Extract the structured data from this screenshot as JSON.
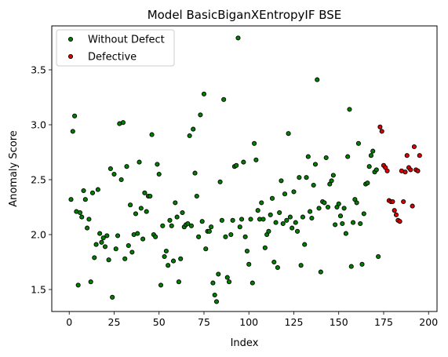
{
  "chart_data": {
    "type": "scatter",
    "title": "Model BasicBiganXEntropyIF BSE",
    "xlabel": "Index",
    "ylabel": "Anomaly Score",
    "xlim": [
      -9.7,
      204.7
    ],
    "ylim": [
      1.3,
      3.9
    ],
    "xticks": [
      0,
      25,
      50,
      75,
      100,
      125,
      150,
      175,
      200
    ],
    "yticks": [
      1.5,
      2.0,
      2.5,
      3.0,
      3.5
    ],
    "ytick_labels": [
      "1.5",
      "2.0",
      "2.5",
      "3.0",
      "3.5"
    ],
    "grid": false,
    "legend_position": "upper left",
    "series": [
      {
        "name": "Without Defect",
        "color": "#008000",
        "edgecolor": "#000000",
        "points": [
          [
            1,
            2.32
          ],
          [
            2,
            2.94
          ],
          [
            3,
            3.08
          ],
          [
            4,
            2.21
          ],
          [
            5,
            1.54
          ],
          [
            6,
            2.2
          ],
          [
            7,
            2.16
          ],
          [
            8,
            2.4
          ],
          [
            9,
            2.32
          ],
          [
            10,
            2.06
          ],
          [
            11,
            2.14
          ],
          [
            12,
            1.57
          ],
          [
            13,
            2.38
          ],
          [
            14,
            1.79
          ],
          [
            15,
            1.91
          ],
          [
            16,
            2.41
          ],
          [
            17,
            2.01
          ],
          [
            18,
            1.93
          ],
          [
            19,
            1.97
          ],
          [
            20,
            1.89
          ],
          [
            21,
            1.99
          ],
          [
            22,
            1.77
          ],
          [
            23,
            2.6
          ],
          [
            24,
            1.43
          ],
          [
            25,
            2.55
          ],
          [
            26,
            1.87
          ],
          [
            27,
            1.99
          ],
          [
            28,
            3.01
          ],
          [
            29,
            2.5
          ],
          [
            30,
            3.02
          ],
          [
            31,
            1.78
          ],
          [
            32,
            2.62
          ],
          [
            33,
            1.9
          ],
          [
            34,
            2.27
          ],
          [
            35,
            1.84
          ],
          [
            36,
            2.0
          ],
          [
            37,
            2.19
          ],
          [
            38,
            2.01
          ],
          [
            39,
            2.66
          ],
          [
            40,
            2.24
          ],
          [
            41,
            1.96
          ],
          [
            42,
            2.38
          ],
          [
            43,
            2.21
          ],
          [
            44,
            2.35
          ],
          [
            45,
            2.35
          ],
          [
            46,
            2.91
          ],
          [
            47,
            2.0
          ],
          [
            48,
            1.98
          ],
          [
            49,
            2.64
          ],
          [
            50,
            2.55
          ],
          [
            51,
            1.54
          ],
          [
            52,
            2.08
          ],
          [
            53,
            1.8
          ],
          [
            54,
            1.85
          ],
          [
            55,
            1.72
          ],
          [
            56,
            2.13
          ],
          [
            57,
            2.08
          ],
          [
            58,
            1.76
          ],
          [
            59,
            2.29
          ],
          [
            60,
            2.16
          ],
          [
            61,
            1.57
          ],
          [
            62,
            1.78
          ],
          [
            63,
            2.2
          ],
          [
            64,
            2.07
          ],
          [
            65,
            2.09
          ],
          [
            66,
            2.1
          ],
          [
            67,
            2.9
          ],
          [
            68,
            2.08
          ],
          [
            69,
            2.96
          ],
          [
            70,
            2.56
          ],
          [
            71,
            2.35
          ],
          [
            72,
            1.98
          ],
          [
            73,
            3.09
          ],
          [
            74,
            2.12
          ],
          [
            75,
            3.28
          ],
          [
            76,
            1.87
          ],
          [
            77,
            2.03
          ],
          [
            78,
            2.03
          ],
          [
            79,
            2.07
          ],
          [
            80,
            1.56
          ],
          [
            81,
            1.45
          ],
          [
            82,
            1.39
          ],
          [
            83,
            1.64
          ],
          [
            84,
            2.48
          ],
          [
            85,
            2.13
          ],
          [
            86,
            3.23
          ],
          [
            87,
            1.98
          ],
          [
            88,
            1.61
          ],
          [
            89,
            1.57
          ],
          [
            90,
            2.0
          ],
          [
            91,
            2.13
          ],
          [
            92,
            2.62
          ],
          [
            93,
            2.63
          ],
          [
            94,
            3.79
          ],
          [
            95,
            2.07
          ],
          [
            96,
            2.14
          ],
          [
            97,
            2.66
          ],
          [
            98,
            1.98
          ],
          [
            99,
            1.85
          ],
          [
            100,
            1.73
          ],
          [
            101,
            2.14
          ],
          [
            102,
            1.56
          ],
          [
            103,
            2.83
          ],
          [
            104,
            2.68
          ],
          [
            105,
            2.22
          ],
          [
            106,
            2.14
          ],
          [
            107,
            2.29
          ],
          [
            108,
            2.14
          ],
          [
            109,
            1.88
          ],
          [
            110,
            2.0
          ],
          [
            111,
            2.03
          ],
          [
            112,
            2.18
          ],
          [
            113,
            2.33
          ],
          [
            114,
            1.75
          ],
          [
            115,
            2.11
          ],
          [
            116,
            1.7
          ],
          [
            117,
            2.2
          ],
          [
            118,
            2.49
          ],
          [
            119,
            2.1
          ],
          [
            120,
            2.37
          ],
          [
            121,
            2.13
          ],
          [
            122,
            2.92
          ],
          [
            123,
            2.16
          ],
          [
            124,
            2.06
          ],
          [
            125,
            2.39
          ],
          [
            126,
            2.11
          ],
          [
            127,
            2.03
          ],
          [
            128,
            2.52
          ],
          [
            129,
            1.72
          ],
          [
            130,
            2.16
          ],
          [
            131,
            1.91
          ],
          [
            132,
            2.52
          ],
          [
            133,
            2.71
          ],
          [
            134,
            2.21
          ],
          [
            135,
            2.15
          ],
          [
            136,
            2.45
          ],
          [
            137,
            2.64
          ],
          [
            138,
            3.41
          ],
          [
            139,
            2.24
          ],
          [
            140,
            1.66
          ],
          [
            141,
            2.3
          ],
          [
            142,
            2.29
          ],
          [
            143,
            2.7
          ],
          [
            144,
            2.25
          ],
          [
            145,
            2.46
          ],
          [
            146,
            2.49
          ],
          [
            147,
            2.54
          ],
          [
            148,
            2.09
          ],
          [
            149,
            2.25
          ],
          [
            150,
            2.28
          ],
          [
            151,
            2.17
          ],
          [
            152,
            2.1
          ],
          [
            153,
            2.24
          ],
          [
            154,
            2.01
          ],
          [
            155,
            2.71
          ],
          [
            156,
            3.14
          ],
          [
            157,
            1.71
          ],
          [
            158,
            2.11
          ],
          [
            159,
            2.32
          ],
          [
            160,
            2.29
          ],
          [
            161,
            2.83
          ],
          [
            162,
            2.1
          ],
          [
            163,
            1.73
          ],
          [
            164,
            2.19
          ],
          [
            165,
            2.46
          ],
          [
            166,
            2.47
          ],
          [
            167,
            2.62
          ],
          [
            168,
            2.72
          ],
          [
            169,
            2.76
          ],
          [
            170,
            2.57
          ],
          [
            171,
            2.59
          ],
          [
            172,
            1.8
          ]
        ]
      },
      {
        "name": "Defective",
        "color": "#e00000",
        "edgecolor": "#000000",
        "points": [
          [
            173,
            2.98
          ],
          [
            174,
            2.94
          ],
          [
            175,
            2.63
          ],
          [
            176,
            2.61
          ],
          [
            177,
            2.58
          ],
          [
            178,
            2.31
          ],
          [
            179,
            2.3
          ],
          [
            180,
            2.3
          ],
          [
            181,
            2.22
          ],
          [
            182,
            2.18
          ],
          [
            183,
            2.13
          ],
          [
            184,
            2.12
          ],
          [
            185,
            2.58
          ],
          [
            186,
            2.3
          ],
          [
            187,
            2.57
          ],
          [
            188,
            2.72
          ],
          [
            189,
            2.61
          ],
          [
            190,
            2.59
          ],
          [
            191,
            2.26
          ],
          [
            192,
            2.8
          ],
          [
            193,
            2.59
          ],
          [
            194,
            2.58
          ],
          [
            195,
            2.72
          ]
        ]
      }
    ]
  }
}
